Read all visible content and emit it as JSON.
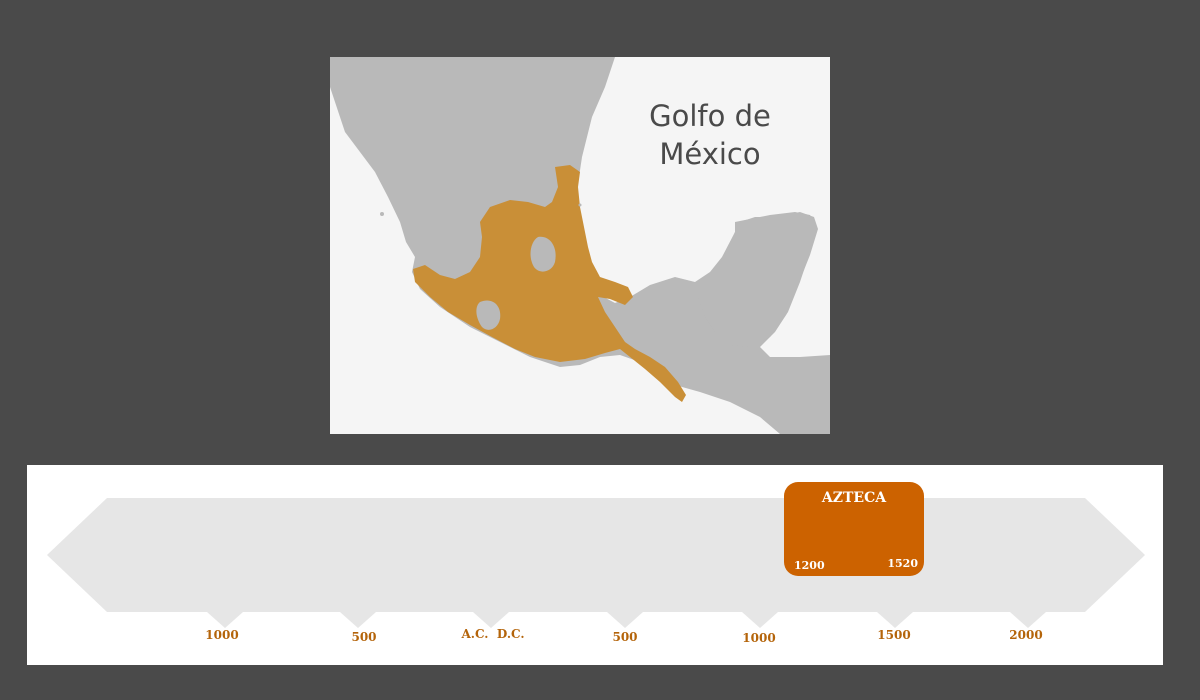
{
  "map": {
    "gulf_label_line1": "Golfo de",
    "gulf_label_line2": "México",
    "colors": {
      "land": "#b9b9b9",
      "sea": "#f5f5f5",
      "highlight": "#c98f37"
    }
  },
  "timeline": {
    "ticks": [
      {
        "label": "1000"
      },
      {
        "label": "500"
      },
      {
        "label": "A.C.  D.C."
      },
      {
        "label": "500"
      },
      {
        "label": "1000"
      },
      {
        "label": "1500"
      },
      {
        "label": "2000"
      }
    ],
    "period": {
      "title": "AZTECA",
      "start": "1200",
      "end": "1520",
      "color": "#cc6200"
    },
    "band_color": "#e6e6e6",
    "label_color": "#b4640a"
  }
}
